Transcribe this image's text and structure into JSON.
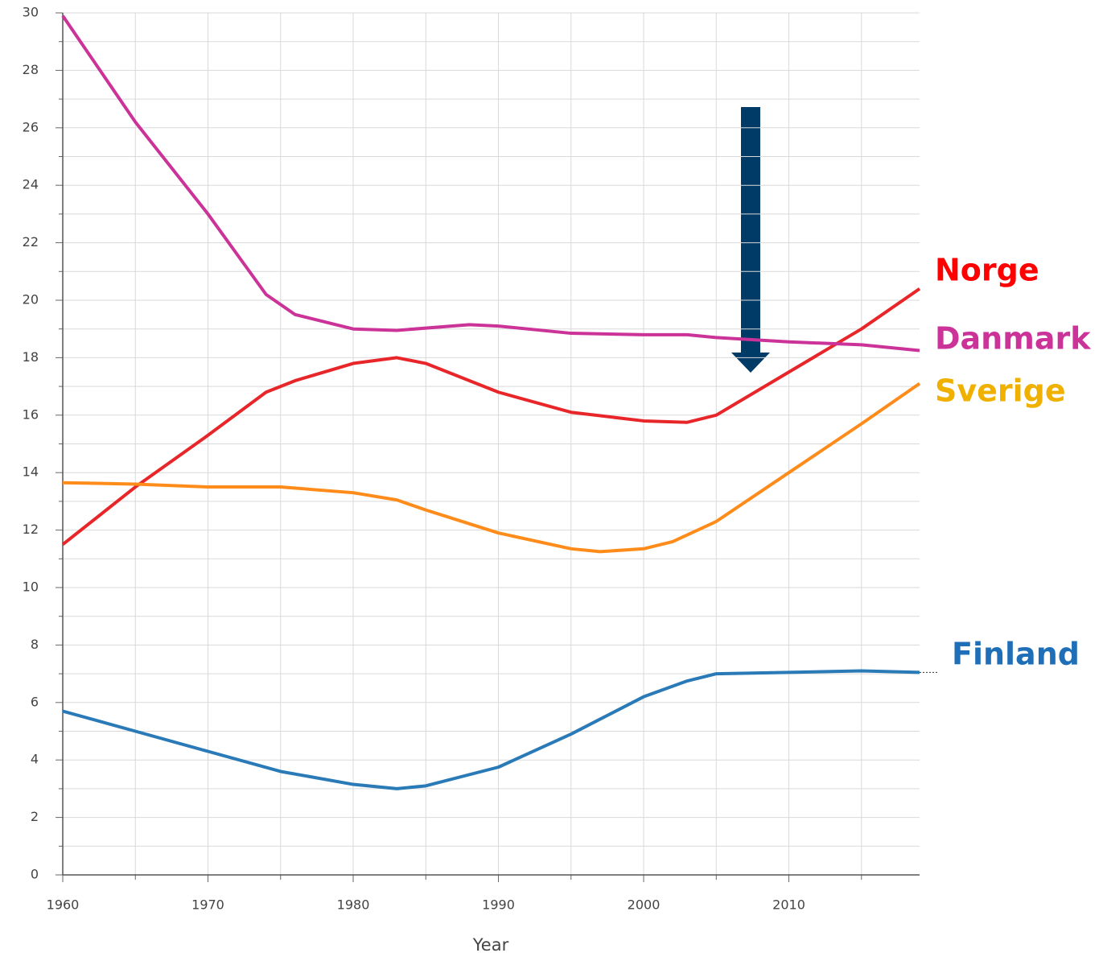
{
  "chart_data": {
    "type": "line",
    "x_label": "Year",
    "xlim": [
      1960,
      2019
    ],
    "xticks": [
      1960,
      1970,
      1980,
      1990,
      2000,
      2010
    ],
    "xminorticks": [
      1965,
      1975,
      1985,
      1995,
      2005,
      2015
    ],
    "ylim": [
      0,
      30
    ],
    "yticks": [
      0,
      2,
      4,
      6,
      8,
      10,
      12,
      14,
      16,
      18,
      20,
      22,
      24,
      26,
      28,
      30
    ],
    "yminorticks": [
      1,
      3,
      5,
      7,
      9,
      11,
      13,
      15,
      17,
      19,
      21,
      23,
      25,
      27,
      29
    ],
    "grid": true,
    "series": [
      {
        "name": "Norge",
        "color": "#e8262a",
        "label_color": "#ff0000",
        "x": [
          1960,
          1965,
          1970,
          1974,
          1976,
          1980,
          1983,
          1985,
          1990,
          1995,
          2000,
          2003,
          2005,
          2010,
          2015,
          2019
        ],
        "values": [
          11.5,
          13.5,
          15.3,
          16.8,
          17.2,
          17.8,
          18.0,
          17.8,
          16.8,
          16.1,
          15.8,
          15.75,
          16.0,
          17.5,
          19.0,
          20.4
        ]
      },
      {
        "name": "Danmark",
        "color": "#cc3399",
        "label_color": "#cc3399",
        "x": [
          1960,
          1965,
          1970,
          1974,
          1976,
          1980,
          1983,
          1988,
          1990,
          1995,
          2000,
          2003,
          2005,
          2010,
          2015,
          2019
        ],
        "values": [
          29.9,
          26.2,
          23.0,
          20.2,
          19.5,
          19.0,
          18.95,
          19.15,
          19.1,
          18.85,
          18.8,
          18.8,
          18.7,
          18.55,
          18.45,
          18.25
        ]
      },
      {
        "name": "Sverige",
        "color": "#ff8c1a",
        "label_color": "#f0b000",
        "x": [
          1960,
          1965,
          1970,
          1975,
          1980,
          1983,
          1985,
          1990,
          1995,
          1997,
          2000,
          2002,
          2005,
          2010,
          2015,
          2019
        ],
        "values": [
          13.65,
          13.6,
          13.5,
          13.5,
          13.3,
          13.05,
          12.7,
          11.9,
          11.35,
          11.25,
          11.35,
          11.6,
          12.3,
          14.0,
          15.7,
          17.1
        ]
      },
      {
        "name": "Finland",
        "color": "#2a7ab8",
        "label_color": "#1f6fb8",
        "x": [
          1960,
          1965,
          1970,
          1975,
          1980,
          1983,
          1985,
          1990,
          1995,
          2000,
          2003,
          2005,
          2010,
          2015,
          2019
        ],
        "values": [
          5.7,
          5.0,
          4.3,
          3.6,
          3.15,
          3.0,
          3.1,
          3.75,
          4.9,
          6.2,
          6.75,
          7.0,
          7.05,
          7.1,
          7.05
        ]
      }
    ]
  }
}
